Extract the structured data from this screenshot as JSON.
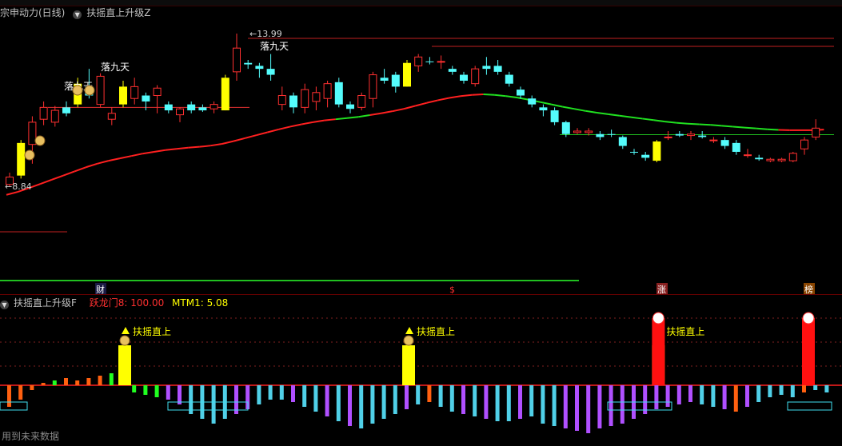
{
  "main_header": {
    "title": "宗申动力(日线)",
    "indicator": "扶摇直上升级Z"
  },
  "sub_header": {
    "indicator": "扶摇直上升级F",
    "items": [
      {
        "label": "跃龙门8: 100.00",
        "color": "#ff3030"
      },
      {
        "label": "MTM1: 5.08",
        "color": "#ffff00"
      }
    ]
  },
  "footer_text": "用到未来数据",
  "colors": {
    "up": "#ff3030",
    "down": "#54fcfc",
    "signal": "#ffff00",
    "ma_up": "#ff2020",
    "ma_down": "#20e020"
  },
  "chart_data": [
    {
      "type": "candlestick",
      "price_labels": {
        "high": "13.99",
        "low": "8.84"
      },
      "annotations": [
        "落九天",
        "落九天",
        "落九天"
      ],
      "event_markers": [
        "财",
        "$",
        "涨",
        "榜"
      ],
      "candles": [
        {
          "o": 8.9,
          "h": 9.3,
          "l": 8.84,
          "c": 9.15,
          "k": "up"
        },
        {
          "o": 9.2,
          "h": 10.4,
          "l": 9.1,
          "c": 10.3,
          "k": "sig"
        },
        {
          "o": 10.25,
          "h": 11.2,
          "l": 9.6,
          "c": 11.0,
          "k": "up"
        },
        {
          "o": 11.1,
          "h": 11.7,
          "l": 10.9,
          "c": 11.5,
          "k": "up"
        },
        {
          "o": 11.0,
          "h": 11.55,
          "l": 10.85,
          "c": 11.4,
          "k": "up"
        },
        {
          "o": 11.5,
          "h": 11.7,
          "l": 11.2,
          "c": 11.3,
          "k": "down"
        },
        {
          "o": 11.6,
          "h": 12.5,
          "l": 11.5,
          "c": 12.3,
          "k": "sig"
        },
        {
          "o": 12.2,
          "h": 12.8,
          "l": 11.8,
          "c": 11.9,
          "k": "down"
        },
        {
          "o": 11.6,
          "h": 12.65,
          "l": 11.5,
          "c": 12.55,
          "k": "up"
        },
        {
          "o": 11.1,
          "h": 11.5,
          "l": 10.9,
          "c": 11.3,
          "k": "up"
        },
        {
          "o": 11.6,
          "h": 12.4,
          "l": 11.5,
          "c": 12.2,
          "k": "sig"
        },
        {
          "o": 12.2,
          "h": 12.5,
          "l": 11.6,
          "c": 11.8,
          "k": "up"
        },
        {
          "o": 11.7,
          "h": 12.0,
          "l": 11.4,
          "c": 11.9,
          "k": "down"
        },
        {
          "o": 11.9,
          "h": 12.25,
          "l": 11.3,
          "c": 12.15,
          "k": "up"
        },
        {
          "o": 11.6,
          "h": 11.7,
          "l": 11.3,
          "c": 11.4,
          "k": "down"
        },
        {
          "o": 11.25,
          "h": 11.5,
          "l": 11.0,
          "c": 11.45,
          "k": "up"
        },
        {
          "o": 11.6,
          "h": 11.7,
          "l": 11.3,
          "c": 11.4,
          "k": "down"
        },
        {
          "o": 11.4,
          "h": 11.6,
          "l": 11.35,
          "c": 11.5,
          "k": "down"
        },
        {
          "o": 11.45,
          "h": 11.7,
          "l": 11.3,
          "c": 11.6,
          "k": "up"
        },
        {
          "o": 11.4,
          "h": 12.6,
          "l": 11.4,
          "c": 12.5,
          "k": "sig"
        },
        {
          "o": 12.7,
          "h": 13.99,
          "l": 12.4,
          "c": 13.5,
          "k": "up"
        },
        {
          "o": 13.0,
          "h": 13.1,
          "l": 12.8,
          "c": 12.95,
          "k": "down"
        },
        {
          "o": 12.9,
          "h": 13.0,
          "l": 12.5,
          "c": 12.8,
          "k": "down"
        },
        {
          "o": 12.8,
          "h": 13.3,
          "l": 12.4,
          "c": 12.6,
          "k": "down"
        },
        {
          "o": 11.6,
          "h": 12.2,
          "l": 11.4,
          "c": 11.9,
          "k": "up"
        },
        {
          "o": 11.9,
          "h": 12.0,
          "l": 11.3,
          "c": 11.5,
          "k": "down"
        },
        {
          "o": 11.5,
          "h": 12.3,
          "l": 11.3,
          "c": 12.1,
          "k": "up"
        },
        {
          "o": 11.7,
          "h": 12.2,
          "l": 11.4,
          "c": 12.0,
          "k": "up"
        },
        {
          "o": 11.8,
          "h": 12.4,
          "l": 11.5,
          "c": 12.3,
          "k": "up"
        },
        {
          "o": 12.35,
          "h": 12.5,
          "l": 11.5,
          "c": 11.6,
          "k": "down"
        },
        {
          "o": 11.6,
          "h": 11.7,
          "l": 11.3,
          "c": 11.45,
          "k": "down"
        },
        {
          "o": 11.5,
          "h": 12.0,
          "l": 11.4,
          "c": 11.9,
          "k": "up"
        },
        {
          "o": 11.8,
          "h": 12.7,
          "l": 11.5,
          "c": 12.6,
          "k": "up"
        },
        {
          "o": 12.4,
          "h": 12.8,
          "l": 12.3,
          "c": 12.5,
          "k": "down"
        },
        {
          "o": 12.6,
          "h": 12.7,
          "l": 12.0,
          "c": 12.2,
          "k": "down"
        },
        {
          "o": 12.2,
          "h": 13.1,
          "l": 12.2,
          "c": 13.0,
          "k": "sig"
        },
        {
          "o": 12.9,
          "h": 13.3,
          "l": 12.7,
          "c": 13.2,
          "k": "up"
        },
        {
          "o": 13.05,
          "h": 13.2,
          "l": 12.95,
          "c": 13.05,
          "k": "down"
        },
        {
          "o": 13.05,
          "h": 13.25,
          "l": 12.8,
          "c": 13.05,
          "k": "up"
        },
        {
          "o": 12.8,
          "h": 12.9,
          "l": 12.6,
          "c": 12.7,
          "k": "down"
        },
        {
          "o": 12.6,
          "h": 12.7,
          "l": 12.3,
          "c": 12.4,
          "k": "down"
        },
        {
          "o": 12.3,
          "h": 12.9,
          "l": 12.2,
          "c": 12.8,
          "k": "up"
        },
        {
          "o": 12.8,
          "h": 13.2,
          "l": 12.6,
          "c": 12.9,
          "k": "down"
        },
        {
          "o": 12.9,
          "h": 13.1,
          "l": 12.6,
          "c": 12.7,
          "k": "down"
        },
        {
          "o": 12.6,
          "h": 12.7,
          "l": 12.2,
          "c": 12.3,
          "k": "down"
        },
        {
          "o": 12.1,
          "h": 12.2,
          "l": 11.8,
          "c": 11.9,
          "k": "down"
        },
        {
          "o": 11.8,
          "h": 11.9,
          "l": 11.5,
          "c": 11.6,
          "k": "down"
        },
        {
          "o": 11.5,
          "h": 11.6,
          "l": 11.2,
          "c": 11.4,
          "k": "down"
        },
        {
          "o": 11.4,
          "h": 11.5,
          "l": 10.9,
          "c": 11.0,
          "k": "down"
        },
        {
          "o": 11.0,
          "h": 11.05,
          "l": 10.5,
          "c": 10.6,
          "k": "down"
        },
        {
          "o": 10.7,
          "h": 10.8,
          "l": 10.6,
          "c": 10.65,
          "k": "up"
        },
        {
          "o": 10.7,
          "h": 10.8,
          "l": 10.55,
          "c": 10.65,
          "k": "up"
        },
        {
          "o": 10.6,
          "h": 10.7,
          "l": 10.4,
          "c": 10.5,
          "k": "down"
        },
        {
          "o": 10.6,
          "h": 10.75,
          "l": 10.5,
          "c": 10.6,
          "k": "down"
        },
        {
          "o": 10.5,
          "h": 10.55,
          "l": 10.1,
          "c": 10.2,
          "k": "down"
        },
        {
          "o": 10.0,
          "h": 10.1,
          "l": 9.9,
          "c": 10.0,
          "k": "down"
        },
        {
          "o": 9.9,
          "h": 10.0,
          "l": 9.7,
          "c": 9.8,
          "k": "down"
        },
        {
          "o": 9.7,
          "h": 10.4,
          "l": 9.65,
          "c": 10.35,
          "k": "sig"
        },
        {
          "o": 10.5,
          "h": 10.7,
          "l": 10.4,
          "c": 10.5,
          "k": "up"
        },
        {
          "o": 10.6,
          "h": 10.7,
          "l": 10.5,
          "c": 10.55,
          "k": "down"
        },
        {
          "o": 10.55,
          "h": 10.7,
          "l": 10.4,
          "c": 10.6,
          "k": "up"
        },
        {
          "o": 10.5,
          "h": 10.7,
          "l": 10.45,
          "c": 10.55,
          "k": "down"
        },
        {
          "o": 10.4,
          "h": 10.5,
          "l": 10.3,
          "c": 10.4,
          "k": "up"
        },
        {
          "o": 10.4,
          "h": 10.5,
          "l": 10.1,
          "c": 10.2,
          "k": "down"
        },
        {
          "o": 10.3,
          "h": 10.4,
          "l": 9.9,
          "c": 10.0,
          "k": "down"
        },
        {
          "o": 9.9,
          "h": 10.1,
          "l": 9.8,
          "c": 9.9,
          "k": "up"
        },
        {
          "o": 9.8,
          "h": 9.9,
          "l": 9.7,
          "c": 9.75,
          "k": "down"
        },
        {
          "o": 9.7,
          "h": 9.8,
          "l": 9.65,
          "c": 9.75,
          "k": "up"
        },
        {
          "o": 9.7,
          "h": 9.8,
          "l": 9.65,
          "c": 9.75,
          "k": "up"
        },
        {
          "o": 9.7,
          "h": 10.0,
          "l": 9.65,
          "c": 9.95,
          "k": "up"
        },
        {
          "o": 10.1,
          "h": 10.5,
          "l": 9.9,
          "c": 10.4,
          "k": "up"
        },
        {
          "o": 10.5,
          "h": 11.1,
          "l": 10.4,
          "c": 10.8,
          "k": "up"
        }
      ],
      "ma": [
        8.55,
        8.65,
        8.78,
        8.92,
        9.06,
        9.2,
        9.34,
        9.48,
        9.6,
        9.7,
        9.78,
        9.86,
        9.94,
        10.0,
        10.06,
        10.1,
        10.14,
        10.17,
        10.21,
        10.27,
        10.36,
        10.46,
        10.56,
        10.66,
        10.76,
        10.85,
        10.93,
        11.0,
        11.06,
        11.1,
        11.14,
        11.18,
        11.24,
        11.3,
        11.37,
        11.45,
        11.55,
        11.65,
        11.74,
        11.82,
        11.88,
        11.92,
        11.94,
        11.92,
        11.88,
        11.83,
        11.76,
        11.68,
        11.6,
        11.52,
        11.45,
        11.38,
        11.32,
        11.27,
        11.22,
        11.17,
        11.12,
        11.07,
        11.02,
        10.98,
        10.95,
        10.93,
        10.91,
        10.88,
        10.85,
        10.82,
        10.79,
        10.76,
        10.74,
        10.73,
        10.73,
        10.73,
        10.75
      ]
    },
    {
      "type": "bar",
      "indicator": "扶摇直上升级F",
      "series": [
        {
          "name": "跃龙门8",
          "value": 100.0
        },
        {
          "name": "MTM1",
          "value": 5.08
        }
      ],
      "signal_labels": [
        "扶摇直上",
        "扶摇直上",
        "扶摇直上"
      ],
      "values": [
        -9,
        -6,
        -2,
        1,
        2,
        3,
        2,
        3,
        4,
        5,
        1,
        -3,
        -4,
        -5,
        -6,
        -8,
        -12,
        -14,
        -16,
        -14,
        -12,
        -10,
        -8,
        -6,
        -6,
        -7,
        -9,
        -11,
        -13,
        -15,
        -17,
        -18,
        -16,
        -14,
        -12,
        -10,
        -8,
        -7,
        -9,
        -11,
        -12,
        -13,
        -14,
        -15,
        -15,
        -14,
        -13,
        -16,
        -17,
        -18,
        -19,
        -20,
        -18,
        -17,
        -16,
        -14,
        -12,
        -10,
        -9,
        -8,
        -7,
        -8,
        -9,
        -10,
        -11,
        -9,
        -7,
        -5,
        -4,
        -5,
        -3,
        -2,
        -3
      ]
    }
  ]
}
